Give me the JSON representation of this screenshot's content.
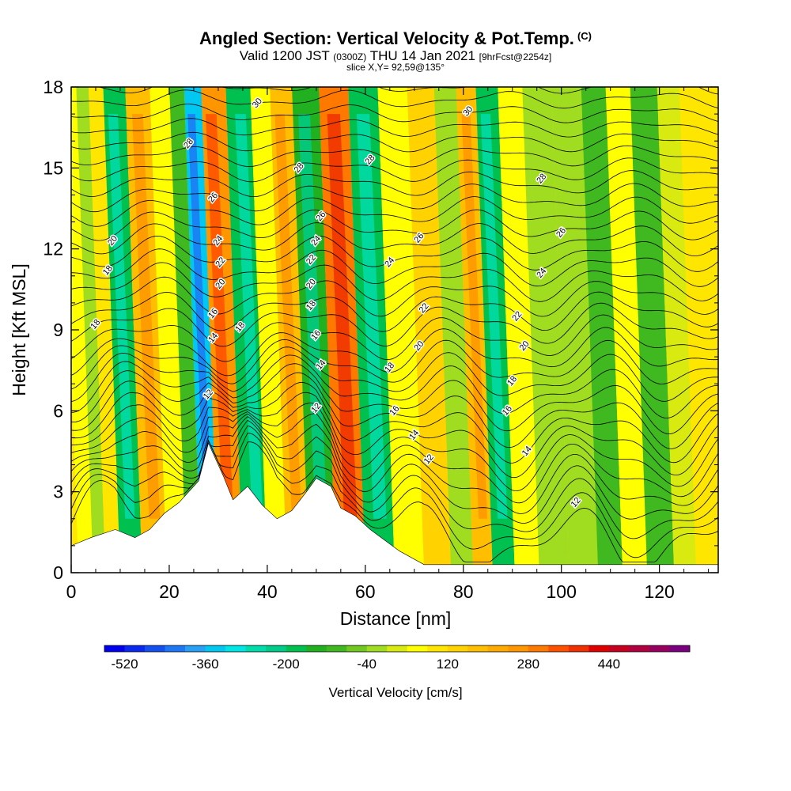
{
  "header": {
    "title": "Angled Section: Vertical Velocity & Pot.Temp.",
    "copyright": "(C)",
    "valid_main": "Valid 1200 JST",
    "valid_zulu": "(0300Z)",
    "valid_date": "THU 14 Jan 2021",
    "forecast": "[9hrFcst@2254z]",
    "slice": "slice X,Y= 92,59@135°"
  },
  "chart_data": {
    "type": "heatmap",
    "xlabel": "Distance [nm]",
    "ylabel": "Height [Kft MSL]",
    "xlim": [
      0,
      132
    ],
    "ylim": [
      0,
      18
    ],
    "x_ticks": [
      "0",
      "20",
      "40",
      "60",
      "80",
      "100",
      "120"
    ],
    "y_ticks": [
      "0",
      "3",
      "6",
      "9",
      "12",
      "15",
      "18"
    ],
    "colorbar": {
      "label": "Vertical Velocity [cm/s]",
      "tick_labels": [
        "-520",
        "-360",
        "-200",
        "-40",
        "120",
        "280",
        "440"
      ],
      "min": -560,
      "max": 600,
      "step": 40,
      "colors": [
        "#0000ee",
        "#0a28f0",
        "#1450f0",
        "#1e78f5",
        "#28a0f5",
        "#00c8f0",
        "#00e6e6",
        "#00dcaa",
        "#00cc88",
        "#00c050",
        "#20b020",
        "#40b820",
        "#70c820",
        "#a0dc20",
        "#d8ea10",
        "#ffff00",
        "#ffe600",
        "#ffd200",
        "#ffbe00",
        "#ffaa00",
        "#ff9600",
        "#ff7800",
        "#ff5000",
        "#f03000",
        "#e00000",
        "#c80020",
        "#b00040",
        "#980060",
        "#7a0080"
      ]
    },
    "terrain": [
      [
        0,
        1
      ],
      [
        4,
        1.3
      ],
      [
        9,
        1.6
      ],
      [
        13,
        1.3
      ],
      [
        16,
        1.6
      ],
      [
        19,
        2.2
      ],
      [
        22,
        2.6
      ],
      [
        26,
        3.4
      ],
      [
        28,
        4.8
      ],
      [
        31,
        3.6
      ],
      [
        33,
        2.7
      ],
      [
        36,
        3.2
      ],
      [
        39,
        2.5
      ],
      [
        42,
        2
      ],
      [
        45,
        2.3
      ],
      [
        48,
        3
      ],
      [
        50,
        3.5
      ],
      [
        53,
        3.2
      ],
      [
        55,
        2.4
      ],
      [
        58,
        2.1
      ],
      [
        61,
        1.6
      ],
      [
        64,
        1.2
      ],
      [
        67,
        0.8
      ],
      [
        72,
        0.3
      ],
      [
        132,
        0.3
      ]
    ],
    "vertical_velocity_bands": [
      {
        "x": 3,
        "value": 60
      },
      {
        "x": 6,
        "value": -40
      },
      {
        "x": 8,
        "value": 80
      },
      {
        "x": 12,
        "value": -180
      },
      {
        "x": 17,
        "value": 160
      },
      {
        "x": 22,
        "value": 40
      },
      {
        "x": 25,
        "value": -120
      },
      {
        "x": 28,
        "value": -360
      },
      {
        "x": 32,
        "value": 240
      },
      {
        "x": 38,
        "value": -200
      },
      {
        "x": 42,
        "value": 40
      },
      {
        "x": 46,
        "value": 160
      },
      {
        "x": 51,
        "value": -160
      },
      {
        "x": 57,
        "value": 300
      },
      {
        "x": 63,
        "value": -200
      },
      {
        "x": 69,
        "value": 40
      },
      {
        "x": 75,
        "value": 120
      },
      {
        "x": 80,
        "value": -40
      },
      {
        "x": 84,
        "value": 160
      },
      {
        "x": 88,
        "value": -200
      },
      {
        "x": 93,
        "value": 40
      },
      {
        "x": 98,
        "value": -40
      },
      {
        "x": 105,
        "value": -40
      },
      {
        "x": 110,
        "value": -120
      },
      {
        "x": 115,
        "value": 40
      },
      {
        "x": 120,
        "value": -120
      },
      {
        "x": 126,
        "value": 0
      }
    ],
    "contour_labels": [
      {
        "text": "30",
        "x": 38,
        "y": 17.4
      },
      {
        "text": "30",
        "x": 81,
        "y": 17.1
      },
      {
        "text": "28",
        "x": 24,
        "y": 15.9
      },
      {
        "text": "28",
        "x": 46.5,
        "y": 15
      },
      {
        "text": "28",
        "x": 61,
        "y": 15.3
      },
      {
        "text": "28",
        "x": 96,
        "y": 14.6
      },
      {
        "text": "26",
        "x": 29,
        "y": 13.9
      },
      {
        "text": "26",
        "x": 51,
        "y": 13.2
      },
      {
        "text": "26",
        "x": 71,
        "y": 12.4
      },
      {
        "text": "26",
        "x": 100,
        "y": 12.6
      },
      {
        "text": "24",
        "x": 30,
        "y": 12.3
      },
      {
        "text": "24",
        "x": 50,
        "y": 12.3
      },
      {
        "text": "24",
        "x": 65,
        "y": 11.5
      },
      {
        "text": "24",
        "x": 96,
        "y": 11.1
      },
      {
        "text": "22",
        "x": 30.5,
        "y": 11.5
      },
      {
        "text": "22",
        "x": 49,
        "y": 11.6
      },
      {
        "text": "22",
        "x": 72,
        "y": 9.8
      },
      {
        "text": "22",
        "x": 91,
        "y": 9.5
      },
      {
        "text": "20",
        "x": 8.5,
        "y": 12.3
      },
      {
        "text": "20",
        "x": 30.5,
        "y": 10.7
      },
      {
        "text": "20",
        "x": 49,
        "y": 10.7
      },
      {
        "text": "20",
        "x": 71,
        "y": 8.4
      },
      {
        "text": "20",
        "x": 92.5,
        "y": 8.4
      },
      {
        "text": "18",
        "x": 7.5,
        "y": 11.2
      },
      {
        "text": "18",
        "x": 34.5,
        "y": 9.1
      },
      {
        "text": "18",
        "x": 49,
        "y": 9.9
      },
      {
        "text": "18",
        "x": 65,
        "y": 7.6
      },
      {
        "text": "18",
        "x": 90,
        "y": 7.1
      },
      {
        "text": "18",
        "x": 5,
        "y": 9.2
      },
      {
        "text": "16",
        "x": 29,
        "y": 9.6
      },
      {
        "text": "16",
        "x": 50,
        "y": 8.8
      },
      {
        "text": "16",
        "x": 66,
        "y": 6.0
      },
      {
        "text": "16",
        "x": 89,
        "y": 6.0
      },
      {
        "text": "14",
        "x": 29,
        "y": 8.7
      },
      {
        "text": "14",
        "x": 51,
        "y": 7.7
      },
      {
        "text": "14",
        "x": 70,
        "y": 5.1
      },
      {
        "text": "14",
        "x": 93,
        "y": 4.5
      },
      {
        "text": "12",
        "x": 28,
        "y": 6.6
      },
      {
        "text": "12",
        "x": 50,
        "y": 6.1
      },
      {
        "text": "12",
        "x": 73,
        "y": 4.2
      },
      {
        "text": "12",
        "x": 103,
        "y": 2.6
      }
    ]
  }
}
